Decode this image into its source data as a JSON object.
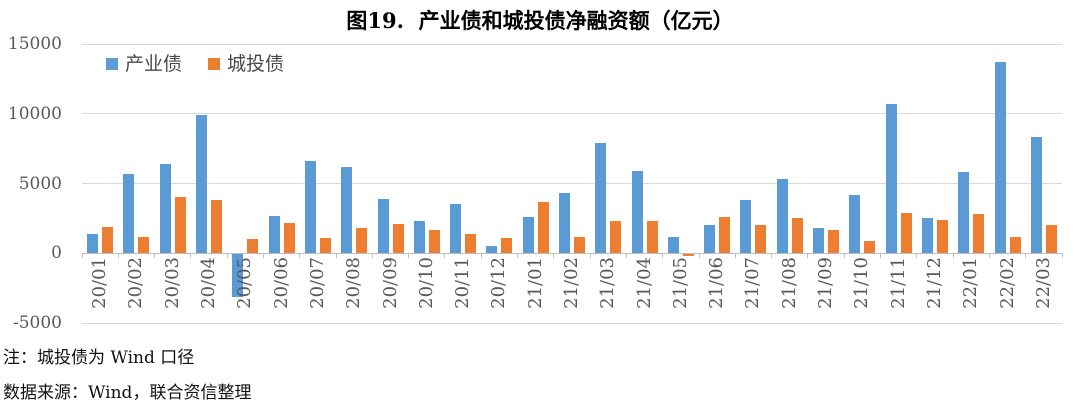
{
  "title": "图19.  产业债和城投债净融资额（亿元）",
  "legend": {
    "items": [
      {
        "label": "产业债",
        "color": "#5B9BD5"
      },
      {
        "label": "城投债",
        "color": "#ED7D31"
      }
    ]
  },
  "footnotes": {
    "note": "注：城投债为 Wind 口径",
    "source": "数据来源：Wind，联合资信整理"
  },
  "colors": {
    "series_industrial": "#5B9BD5",
    "series_urban": "#ED7D31",
    "gridline": "#D9D9D9",
    "axis_line": "#BFBFBF",
    "tick_text": "#595959",
    "title_text": "#000000"
  },
  "chart_data": {
    "type": "bar",
    "title": "图19.  产业债和城投债净融资额（亿元）",
    "xlabel": "",
    "ylabel": "",
    "ylim": [
      -5000,
      15000
    ],
    "yticks": [
      15000,
      10000,
      5000,
      0,
      -5000
    ],
    "grid": true,
    "legend_position": "top-left",
    "categories": [
      "20/01",
      "20/02",
      "20/03",
      "20/04",
      "20/05",
      "20/06",
      "20/07",
      "20/08",
      "20/09",
      "20/10",
      "20/11",
      "20/12",
      "21/01",
      "21/02",
      "21/03",
      "21/04",
      "21/05",
      "21/06",
      "21/07",
      "21/08",
      "21/09",
      "21/10",
      "21/11",
      "21/12",
      "22/01",
      "22/02",
      "22/03"
    ],
    "series": [
      {
        "name": "产业债",
        "color": "#5B9BD5",
        "values": [
          1400,
          5700,
          6400,
          9900,
          -3100,
          2700,
          6600,
          6200,
          3900,
          2300,
          3500,
          500,
          2600,
          4300,
          7900,
          5900,
          1200,
          2000,
          3800,
          5300,
          1800,
          4200,
          10700,
          2500,
          5800,
          13700,
          8300
        ]
      },
      {
        "name": "城投债",
        "color": "#ED7D31",
        "values": [
          1900,
          1200,
          4000,
          3800,
          1000,
          2200,
          1100,
          1800,
          2100,
          1700,
          1400,
          1100,
          3700,
          1200,
          2300,
          2300,
          -150,
          2600,
          2000,
          2500,
          1700,
          900,
          2900,
          2400,
          2800,
          1200,
          2000
        ]
      }
    ]
  }
}
